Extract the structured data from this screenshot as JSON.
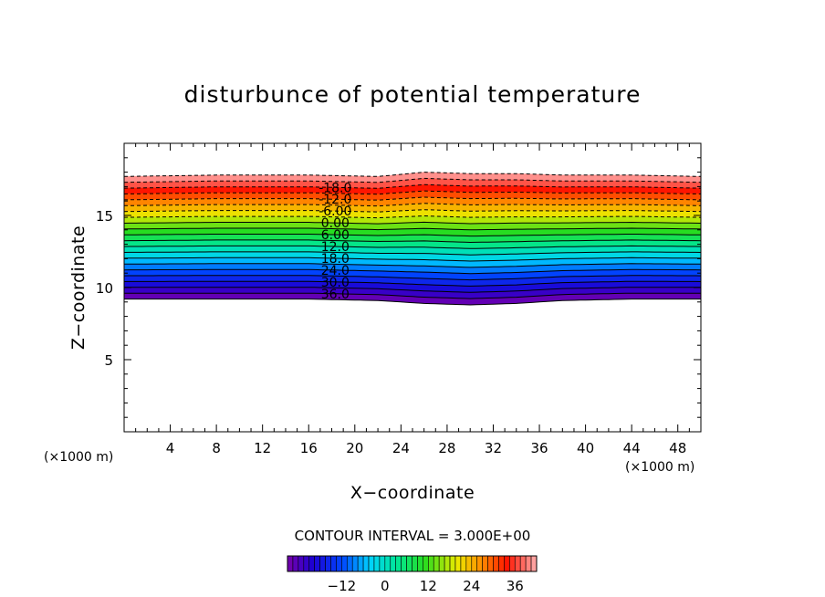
{
  "chart_data": {
    "type": "contour",
    "title": "disturbunce of potential temperature",
    "xlabel": "X−coordinate",
    "ylabel": "Z−coordinate",
    "x_unit_label": "(×1000 m)",
    "y_unit_label": "(×1000 m)",
    "xlim": [
      0,
      50
    ],
    "ylim": [
      0,
      20
    ],
    "x_ticks": [
      4,
      8,
      12,
      16,
      20,
      24,
      28,
      32,
      36,
      40,
      44,
      48
    ],
    "y_ticks": [
      5,
      10,
      15
    ],
    "contour_interval_label": "CONTOUR INTERVAL = 3.000E+00",
    "contour_interval": 3,
    "levels": [
      -24,
      -21,
      -18,
      -15,
      -12,
      -9,
      -6,
      -3,
      0,
      3,
      6,
      9,
      12,
      15,
      18,
      21,
      24,
      27,
      30,
      33,
      36,
      39
    ],
    "layer_profile": {
      "note": "approximate vertical extent of the colored layer vs x (z in units of 1000 m)",
      "x": [
        0,
        8,
        16,
        22,
        26,
        30,
        34,
        38,
        44,
        50
      ],
      "z_top": [
        17.7,
        17.8,
        17.8,
        17.7,
        18.0,
        17.9,
        17.9,
        17.8,
        17.8,
        17.7
      ],
      "z_bottom": [
        9.2,
        9.2,
        9.2,
        9.1,
        8.9,
        8.8,
        8.9,
        9.1,
        9.2,
        9.2
      ]
    },
    "contour_labels": [
      "-18.0",
      "-12.0",
      "-6.00",
      "0.00",
      "6.00",
      "12.0",
      "18.0",
      "24.0",
      "30.0",
      "36.0"
    ],
    "contour_label_values": [
      -18,
      -12,
      -6,
      0,
      6,
      12,
      18,
      24,
      30,
      36
    ],
    "colorbar": {
      "min": -27,
      "max": 42,
      "tick_values": [
        -12,
        0,
        12,
        24,
        36
      ],
      "tick_labels": [
        "−12",
        "0",
        "12",
        "24",
        "36"
      ]
    }
  }
}
